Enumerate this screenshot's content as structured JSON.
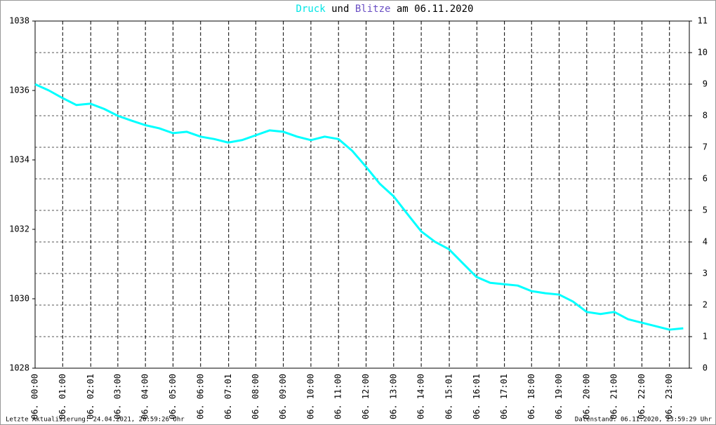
{
  "chart_data": {
    "type": "line",
    "title_parts": [
      {
        "text": "Druck",
        "color": "#00e5e5"
      },
      {
        "text": "und",
        "color": "#000000"
      },
      {
        "text": "Blitze",
        "color": "#6a4fc4"
      },
      {
        "text": "am 06.11.2020",
        "color": "#000000"
      }
    ],
    "xlim": [
      0,
      23.72
    ],
    "xticks": [
      {
        "value": 0,
        "label": "06. 00:00"
      },
      {
        "value": 1,
        "label": "06. 01:00"
      },
      {
        "value": 2.017,
        "label": "06. 02:01"
      },
      {
        "value": 3,
        "label": "06. 03:00"
      },
      {
        "value": 4,
        "label": "06. 04:00"
      },
      {
        "value": 5,
        "label": "06. 05:00"
      },
      {
        "value": 6,
        "label": "06. 06:00"
      },
      {
        "value": 7.017,
        "label": "06. 07:01"
      },
      {
        "value": 8,
        "label": "06. 08:00"
      },
      {
        "value": 9,
        "label": "06. 09:00"
      },
      {
        "value": 10,
        "label": "06. 10:00"
      },
      {
        "value": 11,
        "label": "06. 11:00"
      },
      {
        "value": 12,
        "label": "06. 12:00"
      },
      {
        "value": 13,
        "label": "06. 13:00"
      },
      {
        "value": 14,
        "label": "06. 14:00"
      },
      {
        "value": 15.017,
        "label": "06. 15:01"
      },
      {
        "value": 16.017,
        "label": "06. 16:01"
      },
      {
        "value": 17.017,
        "label": "06. 17:01"
      },
      {
        "value": 18,
        "label": "06. 18:00"
      },
      {
        "value": 19,
        "label": "06. 19:00"
      },
      {
        "value": 20,
        "label": "06. 20:00"
      },
      {
        "value": 21,
        "label": "06. 21:00"
      },
      {
        "value": 22,
        "label": "06. 22:00"
      },
      {
        "value": 23,
        "label": "06. 23:00"
      }
    ],
    "ylim": [
      1028,
      1038
    ],
    "yticks": [
      1028,
      1030,
      1032,
      1034,
      1036,
      1038
    ],
    "y2lim": [
      0,
      11
    ],
    "y2ticks": [
      0,
      1,
      2,
      3,
      4,
      5,
      6,
      7,
      8,
      9,
      10,
      11
    ],
    "grid": true,
    "x": [
      0,
      0.5,
      1,
      1.5,
      2,
      2.5,
      3,
      3.5,
      4,
      4.5,
      5,
      5.5,
      6,
      6.5,
      7,
      7.5,
      8,
      8.5,
      9,
      9.5,
      10,
      10.5,
      11,
      11.5,
      12,
      12.5,
      13,
      13.5,
      14,
      14.5,
      15,
      15.5,
      16,
      16.5,
      17,
      17.5,
      18,
      18.5,
      19,
      19.5,
      20,
      20.5,
      21,
      21.5,
      22,
      22.5,
      23,
      23.5
    ],
    "series": [
      {
        "color": "#00ffff",
        "values": [
          1036.18,
          1036.0,
          1035.78,
          1035.58,
          1035.62,
          1035.47,
          1035.27,
          1035.13,
          1035.0,
          1034.91,
          1034.77,
          1034.81,
          1034.67,
          1034.6,
          1034.5,
          1034.57,
          1034.71,
          1034.85,
          1034.81,
          1034.67,
          1034.57,
          1034.67,
          1034.6,
          1034.26,
          1033.8,
          1033.31,
          1032.95,
          1032.44,
          1031.94,
          1031.64,
          1031.43,
          1031.03,
          1030.63,
          1030.46,
          1030.42,
          1030.38,
          1030.22,
          1030.16,
          1030.12,
          1029.92,
          1029.62,
          1029.56,
          1029.62,
          1029.41,
          1029.31,
          1029.21,
          1029.11,
          1029.15
        ]
      }
    ],
    "footer_left": "Letzte Aktualisierung: 24.04.2021, 20:59:26 Uhr",
    "footer_right": "Datenstand: 06.11.2020, 23:59:29 Uhr"
  }
}
